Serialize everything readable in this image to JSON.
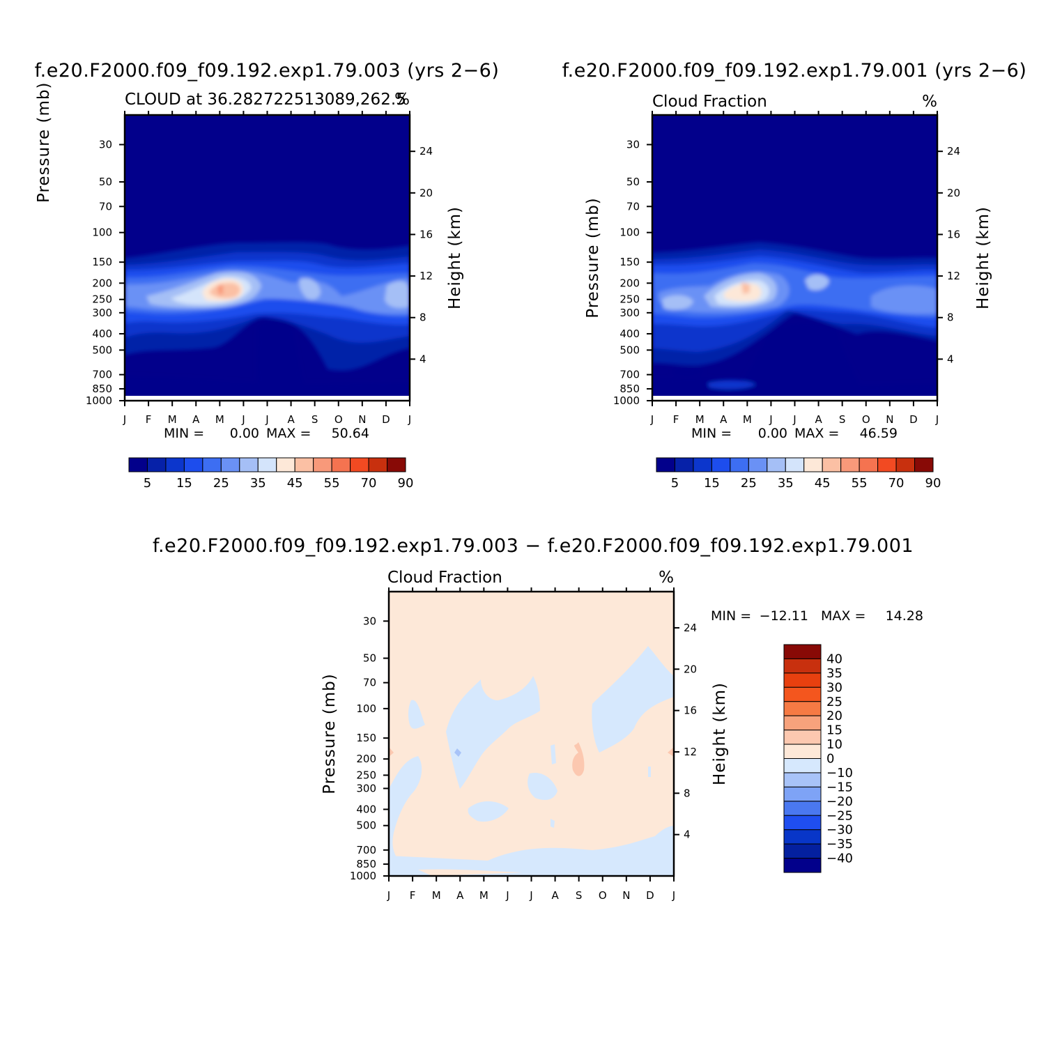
{
  "chart_data": [
    {
      "type": "contour",
      "title": "f.e20.F2000.f09_f09.192.exp1.79.003 (yrs 2−6)",
      "subtitle_left": "CLOUD at 36.282722513089,262.5",
      "subtitle_right": "%",
      "ylabel": "Pressure (mb)",
      "ylabel_right": "Height (km)",
      "pressure_ticks": [
        "30",
        "50",
        "70",
        "100",
        "150",
        "200",
        "250",
        "300",
        "400",
        "500",
        "700",
        "850",
        "1000"
      ],
      "height_ticks": [
        "24",
        "20",
        "16",
        "12",
        "8",
        "4"
      ],
      "month_ticks": [
        "J",
        "F",
        "M",
        "A",
        "M",
        "J",
        "J",
        "A",
        "S",
        "O",
        "N",
        "D",
        "J"
      ],
      "min_label": "MIN =",
      "min_value": "0.00",
      "max_label": "MAX =",
      "max_value": "50.64",
      "colorbar_labels": [
        "5",
        "15",
        "25",
        "35",
        "45",
        "55",
        "70",
        "90"
      ],
      "peak_month": "M",
      "peak_level_mb": 230
    },
    {
      "type": "contour",
      "title": "f.e20.F2000.f09_f09.192.exp1.79.001 (yrs 2−6)",
      "subtitle_left": "Cloud Fraction",
      "subtitle_right": "%",
      "ylabel": "Pressure (mb)",
      "ylabel_right": "Height (km)",
      "pressure_ticks": [
        "30",
        "50",
        "70",
        "100",
        "150",
        "200",
        "250",
        "300",
        "400",
        "500",
        "700",
        "850",
        "1000"
      ],
      "height_ticks": [
        "24",
        "20",
        "16",
        "12",
        "8",
        "4"
      ],
      "month_ticks": [
        "J",
        "F",
        "M",
        "A",
        "M",
        "J",
        "J",
        "A",
        "S",
        "O",
        "N",
        "D",
        "J"
      ],
      "min_label": "MIN =",
      "min_value": "0.00",
      "max_label": "MAX =",
      "max_value": "46.59",
      "colorbar_labels": [
        "5",
        "15",
        "25",
        "35",
        "45",
        "55",
        "70",
        "90"
      ],
      "peak_month": "M",
      "peak_level_mb": 230
    },
    {
      "type": "contour",
      "title": "f.e20.F2000.f09_f09.192.exp1.79.003 − f.e20.F2000.f09_f09.192.exp1.79.001",
      "subtitle_left": "Cloud Fraction",
      "subtitle_right": "%",
      "ylabel": "Pressure (mb)",
      "ylabel_right": "Height (km)",
      "pressure_ticks": [
        "30",
        "50",
        "70",
        "100",
        "150",
        "200",
        "250",
        "300",
        "400",
        "500",
        "700",
        "850",
        "1000"
      ],
      "height_ticks": [
        "24",
        "20",
        "16",
        "12",
        "8",
        "4"
      ],
      "month_ticks": [
        "J",
        "F",
        "M",
        "A",
        "M",
        "J",
        "J",
        "A",
        "S",
        "O",
        "N",
        "D",
        "J"
      ],
      "min_label": "MIN =",
      "min_value": "−12.11",
      "max_label": "MAX =",
      "max_value": "14.28",
      "colorbar_labels": [
        "40",
        "35",
        "30",
        "25",
        "20",
        "15",
        "10",
        "0",
        "−10",
        "−15",
        "−20",
        "−25",
        "−30",
        "−35",
        "−40"
      ]
    }
  ],
  "colors": {
    "seq_palette": [
      "#02008b",
      "#0621a8",
      "#0c36cc",
      "#1d4ded",
      "#3d6ef2",
      "#6a91f5",
      "#a5bff6",
      "#d4e4fb",
      "#fde8d8",
      "#fbc0a4",
      "#f8997a",
      "#f57350",
      "#f24a22",
      "#c8300e",
      "#880a06"
    ],
    "diff_palette": [
      "#880a06",
      "#c8300e",
      "#e8400f",
      "#f4561e",
      "#f67a44",
      "#f7a27c",
      "#fcc8b0",
      "#fde8d8",
      "#d6e8fd",
      "#a8c3f8",
      "#7ea3f6",
      "#4a78f0",
      "#1f4ef0",
      "#0836c8",
      "#04209f",
      "#02008b"
    ]
  }
}
